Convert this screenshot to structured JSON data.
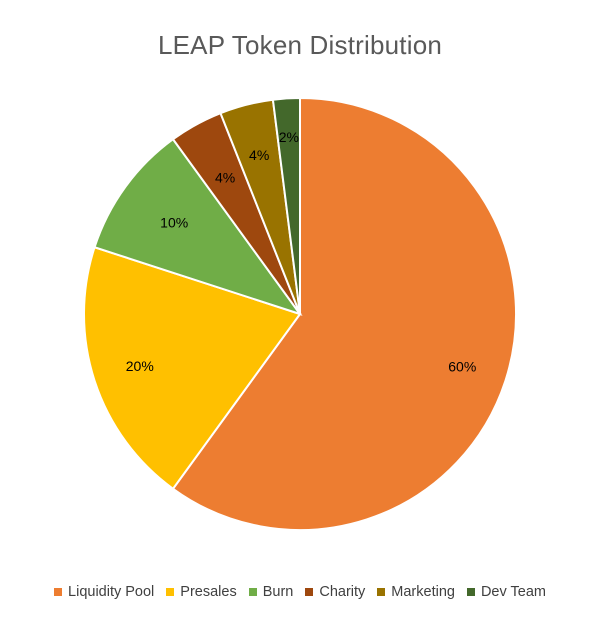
{
  "chart_data": {
    "type": "pie",
    "title": "LEAP Token Distribution",
    "categories": [
      "Liquidity Pool",
      "Presales",
      "Burn",
      "Charity",
      "Marketing",
      "Dev Team"
    ],
    "values": [
      60,
      20,
      10,
      4,
      4,
      2
    ],
    "data_labels": [
      "60%",
      "20%",
      "10%",
      "4%",
      "4%",
      "2%"
    ],
    "colors": [
      "#ED7D31",
      "#FFC000",
      "#70AD47",
      "#9E480E",
      "#997300",
      "#43682B"
    ],
    "legend_position": "bottom",
    "start_angle": "12 o'clock",
    "direction": "clockwise"
  }
}
